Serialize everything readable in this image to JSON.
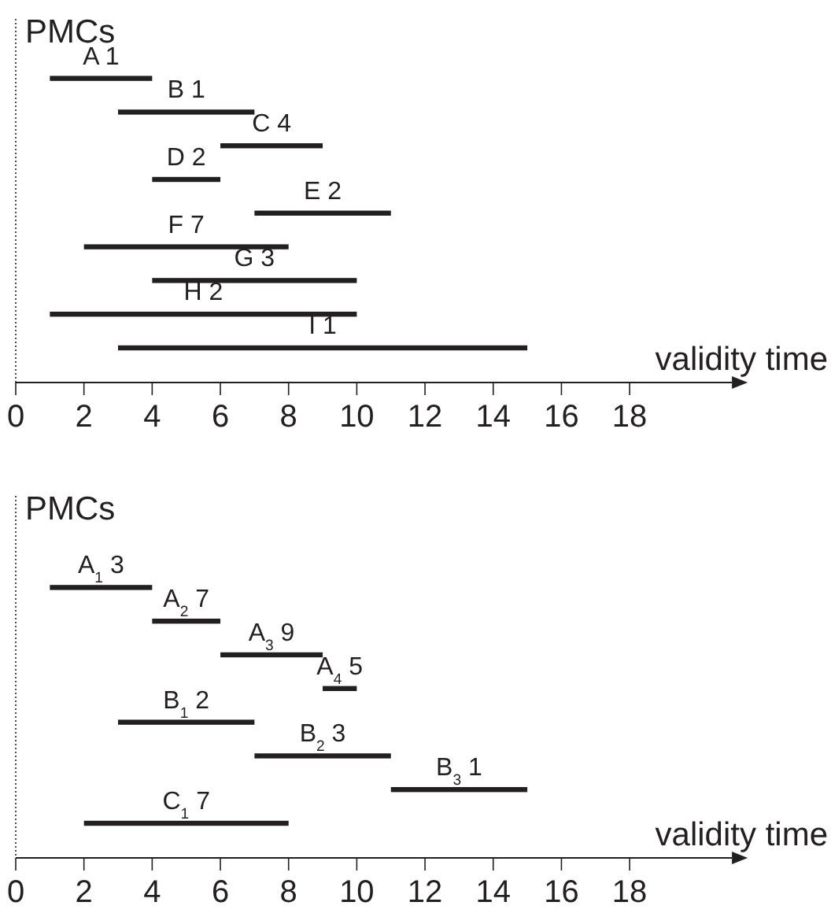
{
  "chart_data": [
    {
      "type": "bar",
      "orientation": "horizontal",
      "ylabel": "PMCs",
      "xlabel": "validity time",
      "categories": [
        "A 1",
        "B 1",
        "C 4",
        "D 2",
        "E 2",
        "F 7",
        "G 3",
        "H 2",
        "I 1"
      ],
      "base": [
        1,
        3,
        6,
        4,
        7,
        2,
        4,
        1,
        3
      ],
      "values": [
        3,
        4,
        3,
        2,
        4,
        6,
        6,
        9,
        12
      ],
      "color": "#231f20",
      "xlim": [
        0,
        21
      ],
      "xticks": [
        0,
        2,
        4,
        6,
        8,
        10,
        12,
        14,
        16,
        18
      ],
      "grid": false
    },
    {
      "type": "bar",
      "orientation": "horizontal",
      "ylabel": "PMCs",
      "xlabel": "validity time",
      "categories": [
        "A$_{1}$ 3",
        "A$_{2}$ 7",
        "A$_{3}$ 9",
        "A$_{4}$ 5",
        "B$_{1}$ 2",
        "B$_{2}$ 3",
        "B$_{3}$ 1",
        "C$_{1}$ 7"
      ],
      "base": [
        1,
        4,
        6,
        9,
        3,
        7,
        11,
        2
      ],
      "values": [
        3,
        2,
        3,
        1,
        4,
        4,
        4,
        6
      ],
      "color": "#231f20",
      "xlim": [
        0,
        21
      ],
      "xticks": [
        0,
        2,
        4,
        6,
        8,
        10,
        12,
        14,
        16,
        18
      ],
      "grid": false
    }
  ]
}
